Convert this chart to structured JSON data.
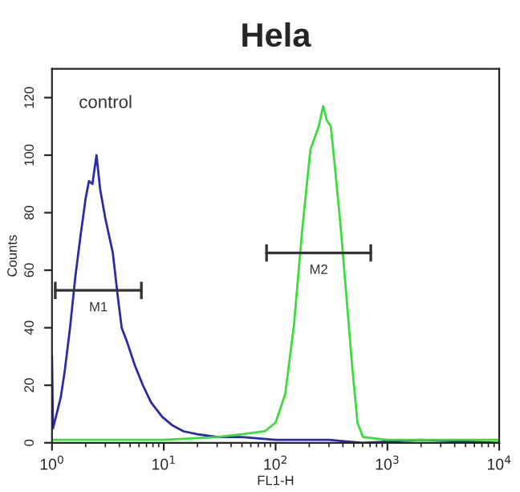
{
  "chart_data": {
    "type": "line",
    "title": "Hela",
    "xlabel": "FL1-H",
    "ylabel": "Counts",
    "log": "x",
    "xlim": [
      1,
      10000
    ],
    "xticks": [
      {
        "value": 1,
        "label": "10$^{0}$"
      },
      {
        "value": 10,
        "label": "10$^{1}$"
      },
      {
        "value": 100,
        "label": "10$^{2}$"
      },
      {
        "value": 1000,
        "label": "10$^{3}$"
      },
      {
        "value": 10000,
        "label": "10$^{4}$"
      }
    ],
    "ylim": [
      0,
      130
    ],
    "yticks": [
      0,
      20,
      40,
      60,
      80,
      100,
      120
    ],
    "grid": false,
    "legend": false,
    "series": [
      {
        "color": "#2b2ba3",
        "x": [
          1.0,
          1.02,
          1.1,
          1.2,
          1.3,
          1.45,
          1.62,
          1.8,
          2.0,
          2.14,
          2.3,
          2.5,
          2.7,
          3.0,
          3.5,
          3.9,
          4.2,
          4.7,
          5.5,
          6.5,
          7.7,
          9.7,
          12,
          15,
          20,
          30,
          50,
          100,
          300,
          600,
          2000,
          10000
        ],
        "values": [
          30,
          5,
          10,
          16,
          25,
          40,
          58,
          72,
          85,
          91,
          90,
          100,
          88,
          78,
          66,
          50,
          40,
          35,
          27,
          20,
          14,
          9,
          6,
          4,
          3,
          2,
          2,
          1,
          1,
          0,
          1,
          0
        ]
      },
      {
        "color": "#3ddc3d",
        "x": [
          1.0,
          3,
          10,
          30,
          50,
          80,
          100,
          122,
          146,
          173,
          205,
          243,
          266,
          288,
          312,
          343,
          384,
          430,
          483,
          540,
          605,
          1000,
          3000,
          10000
        ],
        "values": [
          1,
          1,
          1,
          2,
          3,
          4,
          7,
          17,
          41,
          74,
          102,
          110,
          117,
          112,
          110,
          94,
          74,
          51,
          27,
          7,
          2,
          1,
          1,
          1
        ]
      },
      {
        "color": "#333333",
        "x": [
          1.07,
          6.3
        ],
        "values": [
          53,
          53
        ],
        "errors": [
          3,
          3
        ]
      },
      {
        "color": "#333333",
        "x": [
          83,
          710
        ],
        "values": [
          66,
          66
        ],
        "errors": [
          3,
          3
        ]
      }
    ],
    "annotations": [
      "control",
      {
        "text": "M1",
        "x": 2.6,
        "y": 53
      },
      {
        "text": "M2",
        "x": 243,
        "y": 66
      }
    ]
  }
}
